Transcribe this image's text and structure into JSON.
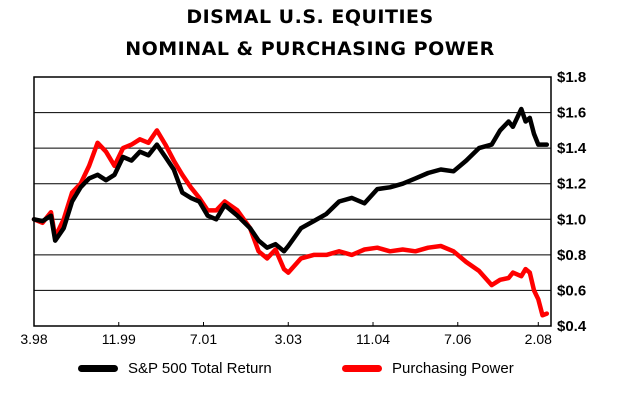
{
  "title_lines": [
    "DISMAL U.S. EQUITIES",
    "NOMINAL & PURCHASING POWER"
  ],
  "chart_data": {
    "type": "line",
    "title": "DISMAL U.S. EQUITIES NOMINAL & PURCHASING POWER",
    "xlabel": "",
    "ylabel": "",
    "x_tick_labels": [
      "3.98",
      "11.99",
      "7.01",
      "3.03",
      "11.04",
      "7.06",
      "2.08"
    ],
    "x_tick_dates": [
      "1998-03",
      "1999-11",
      "2001-07",
      "2003-03",
      "2004-11",
      "2006-07",
      "2008-02"
    ],
    "xlim": [
      "1998-03",
      "2008-05"
    ],
    "y_tick_labels": [
      "$1.8",
      "$1.6",
      "$1.4",
      "$1.2",
      "$1.0",
      "$0.8",
      "$0.6",
      "$0.4"
    ],
    "y_ticks": [
      1.8,
      1.6,
      1.4,
      1.2,
      1.0,
      0.8,
      0.6,
      0.4
    ],
    "ylim": [
      0.4,
      1.8
    ],
    "grid": true,
    "legend_position": "bottom",
    "series": [
      {
        "name": "S&P 500 Total Return",
        "color": "#000000",
        "points": [
          [
            "1998-03",
            1.0
          ],
          [
            "1998-05",
            0.99
          ],
          [
            "1998-07",
            1.02
          ],
          [
            "1998-08",
            0.88
          ],
          [
            "1998-10",
            0.95
          ],
          [
            "1998-12",
            1.1
          ],
          [
            "1999-02",
            1.18
          ],
          [
            "1999-04",
            1.23
          ],
          [
            "1999-06",
            1.25
          ],
          [
            "1999-08",
            1.22
          ],
          [
            "1999-10",
            1.25
          ],
          [
            "1999-12",
            1.35
          ],
          [
            "2000-02",
            1.33
          ],
          [
            "2000-04",
            1.38
          ],
          [
            "2000-06",
            1.36
          ],
          [
            "2000-08",
            1.42
          ],
          [
            "2000-10",
            1.35
          ],
          [
            "2000-12",
            1.28
          ],
          [
            "2001-02",
            1.15
          ],
          [
            "2001-04",
            1.12
          ],
          [
            "2001-06",
            1.1
          ],
          [
            "2001-08",
            1.02
          ],
          [
            "2001-10",
            1.0
          ],
          [
            "2001-12",
            1.08
          ],
          [
            "2002-03",
            1.02
          ],
          [
            "2002-06",
            0.95
          ],
          [
            "2002-08",
            0.88
          ],
          [
            "2002-10",
            0.84
          ],
          [
            "2002-12",
            0.86
          ],
          [
            "2003-02",
            0.82
          ],
          [
            "2003-03",
            0.85
          ],
          [
            "2003-06",
            0.95
          ],
          [
            "2003-09",
            0.99
          ],
          [
            "2003-12",
            1.03
          ],
          [
            "2004-03",
            1.1
          ],
          [
            "2004-06",
            1.12
          ],
          [
            "2004-09",
            1.09
          ],
          [
            "2004-12",
            1.17
          ],
          [
            "2005-03",
            1.18
          ],
          [
            "2005-06",
            1.2
          ],
          [
            "2005-09",
            1.23
          ],
          [
            "2005-12",
            1.26
          ],
          [
            "2006-03",
            1.28
          ],
          [
            "2006-06",
            1.27
          ],
          [
            "2006-09",
            1.33
          ],
          [
            "2006-12",
            1.4
          ],
          [
            "2007-03",
            1.42
          ],
          [
            "2007-05",
            1.5
          ],
          [
            "2007-07",
            1.55
          ],
          [
            "2007-08",
            1.52
          ],
          [
            "2007-10",
            1.62
          ],
          [
            "2007-11",
            1.55
          ],
          [
            "2007-12",
            1.57
          ],
          [
            "2008-01",
            1.48
          ],
          [
            "2008-02",
            1.42
          ],
          [
            "2008-04",
            1.42
          ]
        ]
      },
      {
        "name": "Purchasing Power",
        "color": "#ff0000",
        "points": [
          [
            "1998-03",
            1.0
          ],
          [
            "1998-05",
            0.98
          ],
          [
            "1998-07",
            1.04
          ],
          [
            "1998-08",
            0.9
          ],
          [
            "1998-10",
            1.0
          ],
          [
            "1998-12",
            1.15
          ],
          [
            "1999-02",
            1.2
          ],
          [
            "1999-04",
            1.3
          ],
          [
            "1999-06",
            1.43
          ],
          [
            "1999-08",
            1.38
          ],
          [
            "1999-10",
            1.3
          ],
          [
            "1999-12",
            1.4
          ],
          [
            "2000-02",
            1.42
          ],
          [
            "2000-04",
            1.45
          ],
          [
            "2000-06",
            1.43
          ],
          [
            "2000-08",
            1.5
          ],
          [
            "2000-10",
            1.42
          ],
          [
            "2000-12",
            1.33
          ],
          [
            "2001-02",
            1.25
          ],
          [
            "2001-04",
            1.18
          ],
          [
            "2001-06",
            1.12
          ],
          [
            "2001-08",
            1.05
          ],
          [
            "2001-10",
            1.05
          ],
          [
            "2001-12",
            1.1
          ],
          [
            "2002-03",
            1.05
          ],
          [
            "2002-06",
            0.95
          ],
          [
            "2002-08",
            0.82
          ],
          [
            "2002-10",
            0.78
          ],
          [
            "2002-12",
            0.83
          ],
          [
            "2003-02",
            0.72
          ],
          [
            "2003-03",
            0.7
          ],
          [
            "2003-06",
            0.78
          ],
          [
            "2003-09",
            0.8
          ],
          [
            "2003-12",
            0.8
          ],
          [
            "2004-03",
            0.82
          ],
          [
            "2004-06",
            0.8
          ],
          [
            "2004-09",
            0.83
          ],
          [
            "2004-12",
            0.84
          ],
          [
            "2005-03",
            0.82
          ],
          [
            "2005-06",
            0.83
          ],
          [
            "2005-09",
            0.82
          ],
          [
            "2005-12",
            0.84
          ],
          [
            "2006-03",
            0.85
          ],
          [
            "2006-06",
            0.82
          ],
          [
            "2006-09",
            0.76
          ],
          [
            "2006-12",
            0.71
          ],
          [
            "2007-03",
            0.63
          ],
          [
            "2007-05",
            0.66
          ],
          [
            "2007-07",
            0.67
          ],
          [
            "2007-08",
            0.7
          ],
          [
            "2007-10",
            0.68
          ],
          [
            "2007-11",
            0.72
          ],
          [
            "2007-12",
            0.7
          ],
          [
            "2008-01",
            0.6
          ],
          [
            "2008-02",
            0.55
          ],
          [
            "2008-03",
            0.46
          ],
          [
            "2008-04",
            0.47
          ]
        ]
      }
    ]
  }
}
